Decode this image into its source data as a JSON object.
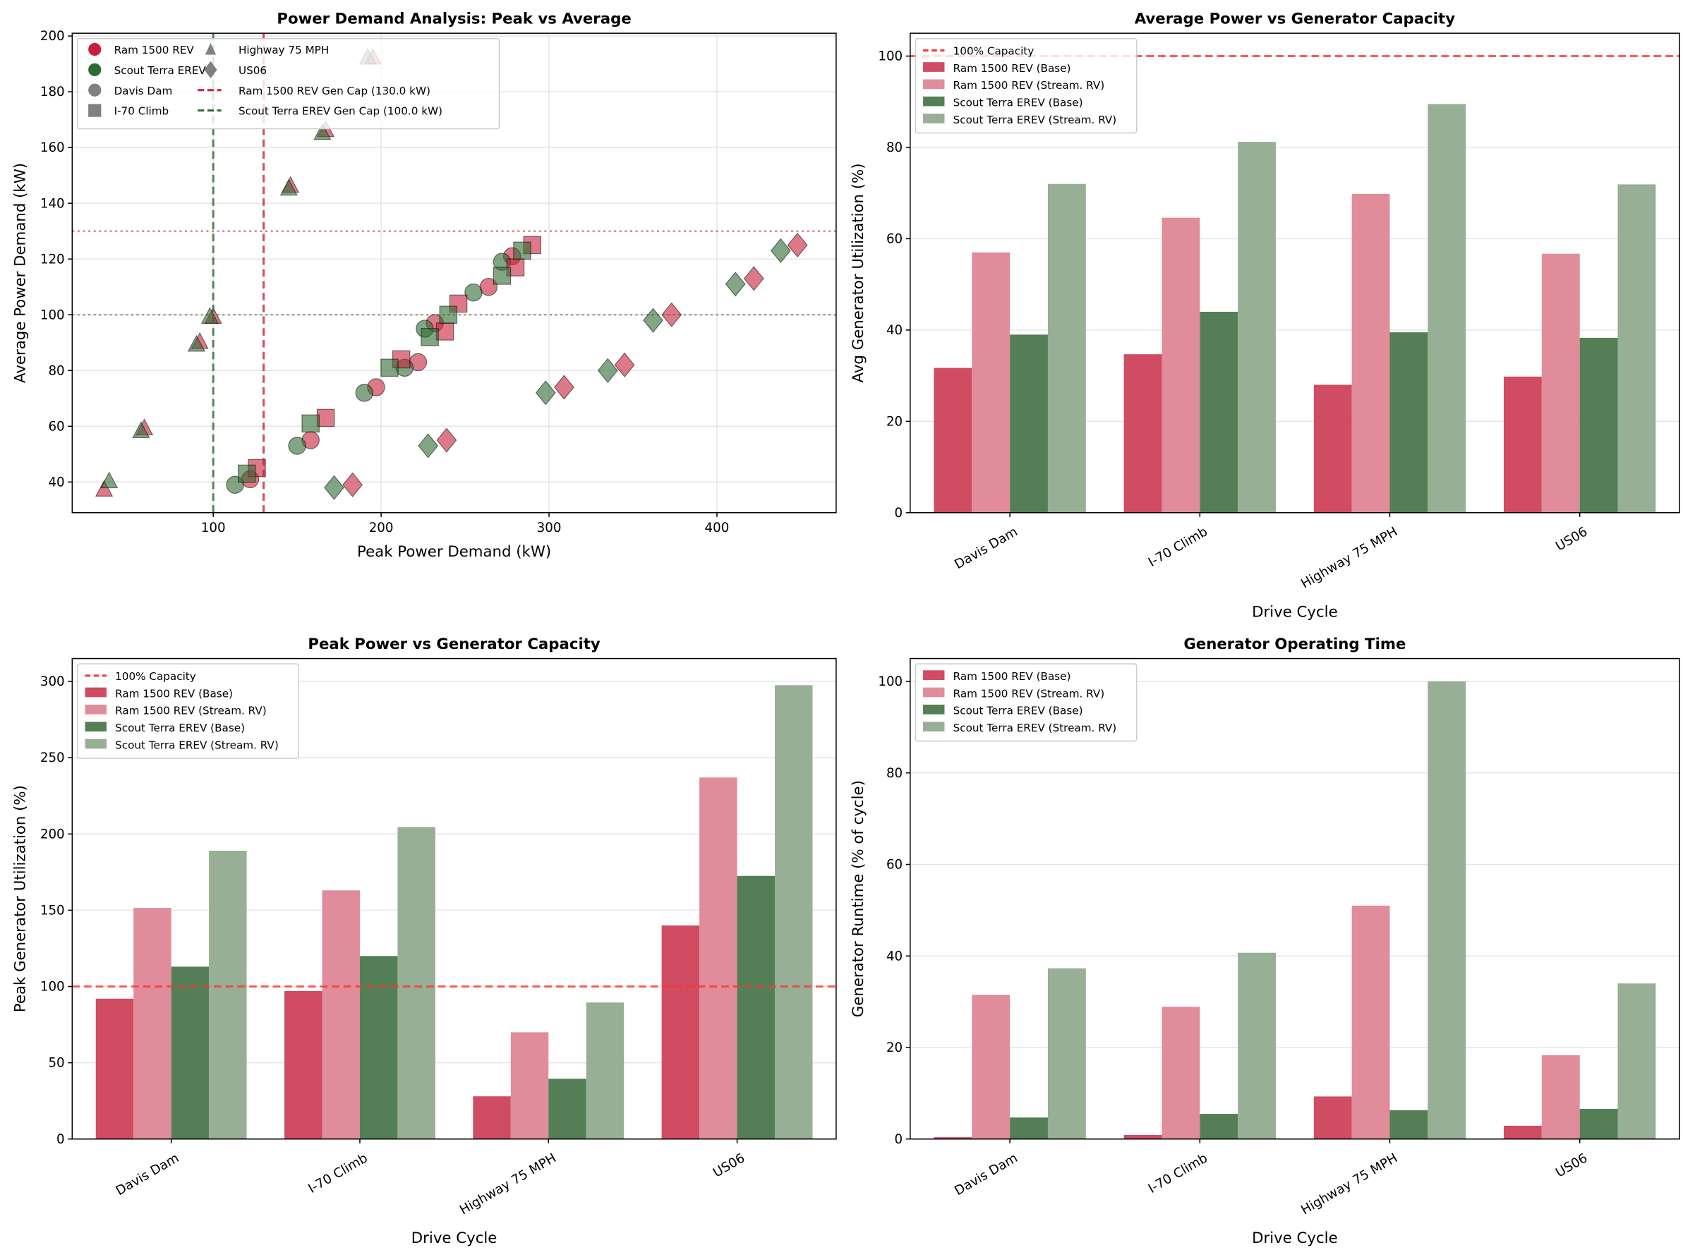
{
  "colors": {
    "ram": "#c8203c",
    "scout": "#2e6b32",
    "ram_base": "#cf4c63",
    "ram_rv": "#e08c9a",
    "scout_base": "#547f56",
    "scout_rv": "#97af95",
    "capacity": "#ff3333"
  },
  "chart_data": [
    {
      "type": "scatter",
      "title": "Power Demand Analysis: Peak vs Average",
      "xlabel": "Peak Power Demand (kW)",
      "ylabel": "Average Power Demand (kW)",
      "xlim": [
        16,
        471
      ],
      "ylim": [
        29,
        201
      ],
      "xticks": [
        100,
        200,
        300,
        400
      ],
      "yticks": [
        40,
        60,
        80,
        100,
        120,
        140,
        160,
        180,
        200
      ],
      "grid": true,
      "legend_position": "top-left",
      "legend": {
        "vehicles": [
          "Ram 1500 REV",
          "Scout Terra EREV"
        ],
        "cycles": [
          {
            "name": "Davis Dam",
            "marker": "circle"
          },
          {
            "name": "I-70 Climb",
            "marker": "square"
          },
          {
            "name": "Highway 75 MPH",
            "marker": "triangle"
          },
          {
            "name": "US06",
            "marker": "diamond"
          }
        ],
        "lines": [
          "Ram 1500 REV Gen Cap (130.0 kW)",
          "Scout Terra EREV Gen Cap (100.0 kW)"
        ]
      },
      "gen_caps": {
        "ram": 130,
        "scout": 100
      },
      "series": [
        {
          "vehicle": "Ram 1500 REV",
          "cycle": "Davis Dam",
          "points": [
            [
              122,
              41
            ],
            [
              158,
              55
            ],
            [
              197,
              74
            ],
            [
              222,
              83
            ],
            [
              232,
              97
            ],
            [
              264,
              110
            ],
            [
              278,
              121
            ]
          ]
        },
        {
          "vehicle": "Scout Terra EREV",
          "cycle": "Davis Dam",
          "points": [
            [
              113,
              39
            ],
            [
              150,
              53
            ],
            [
              190,
              72
            ],
            [
              214,
              81
            ],
            [
              226,
              95
            ],
            [
              255,
              108
            ],
            [
              272,
              119
            ]
          ]
        },
        {
          "vehicle": "Ram 1500 REV",
          "cycle": "I-70 Climb",
          "points": [
            [
              126,
              45
            ],
            [
              167,
              63
            ],
            [
              212,
              84
            ],
            [
              238,
              94
            ],
            [
              246,
              104
            ],
            [
              280,
              117
            ],
            [
              290,
              125
            ]
          ]
        },
        {
          "vehicle": "Scout Terra EREV",
          "cycle": "I-70 Climb",
          "points": [
            [
              120,
              43
            ],
            [
              158,
              61
            ],
            [
              205,
              81
            ],
            [
              229,
              92
            ],
            [
              240,
              100
            ],
            [
              272,
              114
            ],
            [
              284,
              123
            ]
          ]
        },
        {
          "vehicle": "Ram 1500 REV",
          "cycle": "Highway 75 MPH",
          "points": [
            [
              35,
              37
            ],
            [
              59,
              59
            ],
            [
              92,
              90
            ],
            [
              100,
              99
            ],
            [
              146,
              146
            ],
            [
              167,
              166
            ],
            [
              195,
              192
            ]
          ]
        },
        {
          "vehicle": "Scout Terra EREV",
          "cycle": "Highway 75 MPH",
          "points": [
            [
              38,
              40
            ],
            [
              57,
              58
            ],
            [
              90,
              89
            ],
            [
              98,
              99
            ],
            [
              145,
              145
            ],
            [
              165,
              165
            ],
            [
              192,
              192
            ]
          ]
        },
        {
          "vehicle": "Ram 1500 REV",
          "cycle": "US06",
          "points": [
            [
              183,
              39
            ],
            [
              239,
              55
            ],
            [
              309,
              74
            ],
            [
              345,
              82
            ],
            [
              373,
              100
            ],
            [
              422,
              113
            ],
            [
              448,
              125
            ]
          ]
        },
        {
          "vehicle": "Scout Terra EREV",
          "cycle": "US06",
          "points": [
            [
              172,
              38
            ],
            [
              228,
              53
            ],
            [
              298,
              72
            ],
            [
              335,
              80
            ],
            [
              362,
              98
            ],
            [
              411,
              111
            ],
            [
              438,
              123
            ]
          ]
        }
      ]
    },
    {
      "type": "bar",
      "title": "Average Power vs Generator Capacity",
      "xlabel": "Drive Cycle",
      "ylabel": "Avg Generator Utilization (%)",
      "ylim": [
        0,
        105
      ],
      "yticks": [
        0,
        20,
        40,
        60,
        80,
        100
      ],
      "categories": [
        "Davis Dam",
        "I-70 Climb",
        "Highway 75 MPH",
        "US06"
      ],
      "reference_line": {
        "label": "100% Capacity",
        "value": 100
      },
      "legend_position": "top-left",
      "series": [
        {
          "name": "Ram 1500 REV (Base)",
          "values": [
            31.7,
            34.7,
            28.0,
            29.8
          ]
        },
        {
          "name": "Ram 1500 REV (Stream. RV)",
          "values": [
            57.0,
            64.6,
            69.8,
            56.7
          ]
        },
        {
          "name": "Scout Terra EREV (Base)",
          "values": [
            39.0,
            44.0,
            39.5,
            38.3
          ]
        },
        {
          "name": "Scout Terra EREV (Stream. RV)",
          "values": [
            72.0,
            81.2,
            89.5,
            71.9
          ]
        }
      ]
    },
    {
      "type": "bar",
      "title": "Peak Power vs Generator Capacity",
      "xlabel": "Drive Cycle",
      "ylabel": "Peak Generator Utilization (%)",
      "ylim": [
        0,
        315
      ],
      "yticks": [
        0,
        50,
        100,
        150,
        200,
        250,
        300
      ],
      "categories": [
        "Davis Dam",
        "I-70 Climb",
        "Highway 75 MPH",
        "US06"
      ],
      "reference_line": {
        "label": "100% Capacity",
        "value": 100
      },
      "legend_position": "top-left",
      "series": [
        {
          "name": "Ram 1500 REV (Base)",
          "values": [
            92,
            97,
            28,
            140
          ]
        },
        {
          "name": "Ram 1500 REV (Stream. RV)",
          "values": [
            151.5,
            163,
            70,
            237
          ]
        },
        {
          "name": "Scout Terra EREV (Base)",
          "values": [
            113,
            120,
            39.5,
            172.5
          ]
        },
        {
          "name": "Scout Terra EREV (Stream. RV)",
          "values": [
            189,
            204.5,
            89.5,
            297.5
          ]
        }
      ]
    },
    {
      "type": "bar",
      "title": "Generator Operating Time",
      "xlabel": "Drive Cycle",
      "ylabel": "Generator Runtime (% of cycle)",
      "ylim": [
        0,
        105
      ],
      "yticks": [
        0,
        20,
        40,
        60,
        80,
        100
      ],
      "categories": [
        "Davis Dam",
        "I-70 Climb",
        "Highway 75 MPH",
        "US06"
      ],
      "legend_position": "top-left",
      "series": [
        {
          "name": "Ram 1500 REV (Base)",
          "values": [
            0.4,
            0.9,
            9.3,
            2.9
          ]
        },
        {
          "name": "Ram 1500 REV (Stream. RV)",
          "values": [
            31.5,
            28.9,
            51.0,
            18.3
          ]
        },
        {
          "name": "Scout Terra EREV (Base)",
          "values": [
            4.7,
            5.5,
            6.3,
            6.6
          ]
        },
        {
          "name": "Scout Terra EREV (Stream. RV)",
          "values": [
            37.3,
            40.7,
            100.0,
            34.0
          ]
        }
      ]
    }
  ]
}
